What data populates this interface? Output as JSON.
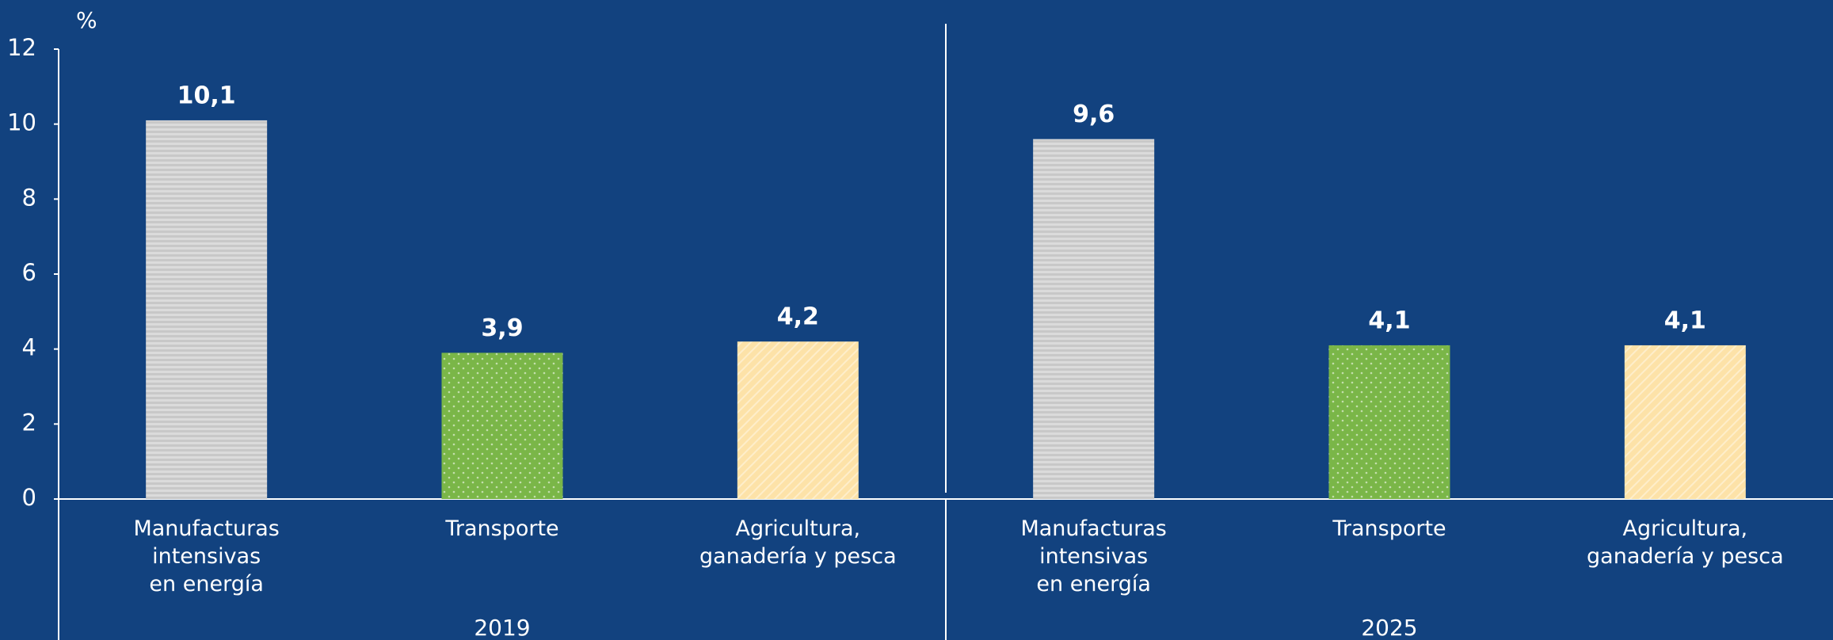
{
  "chart_data": {
    "type": "bar",
    "y_unit": "%",
    "categories": [
      "Manufacturas\nintensivas\nen energía",
      "Transporte",
      "Agricultura,\nganadería y pesca",
      "Manufacturas\nintensivas\nen energía",
      "Transporte",
      "Agricultura,\nganadería y pesca"
    ],
    "groups": [
      "2019",
      "2025"
    ],
    "values": [
      10.1,
      3.9,
      4.2,
      9.6,
      4.1,
      4.1
    ],
    "value_labels": [
      "10,1",
      "3,9",
      "4,2",
      "9,6",
      "4,1",
      "4,1"
    ],
    "colors": [
      "#c8c8c8",
      "#7ab648",
      "#fde2a8",
      "#c8c8c8",
      "#7ab648",
      "#fde2a8"
    ],
    "ylim": [
      0,
      12
    ],
    "yticks": [
      0,
      2,
      4,
      6,
      8,
      10,
      12
    ],
    "grid": false
  }
}
